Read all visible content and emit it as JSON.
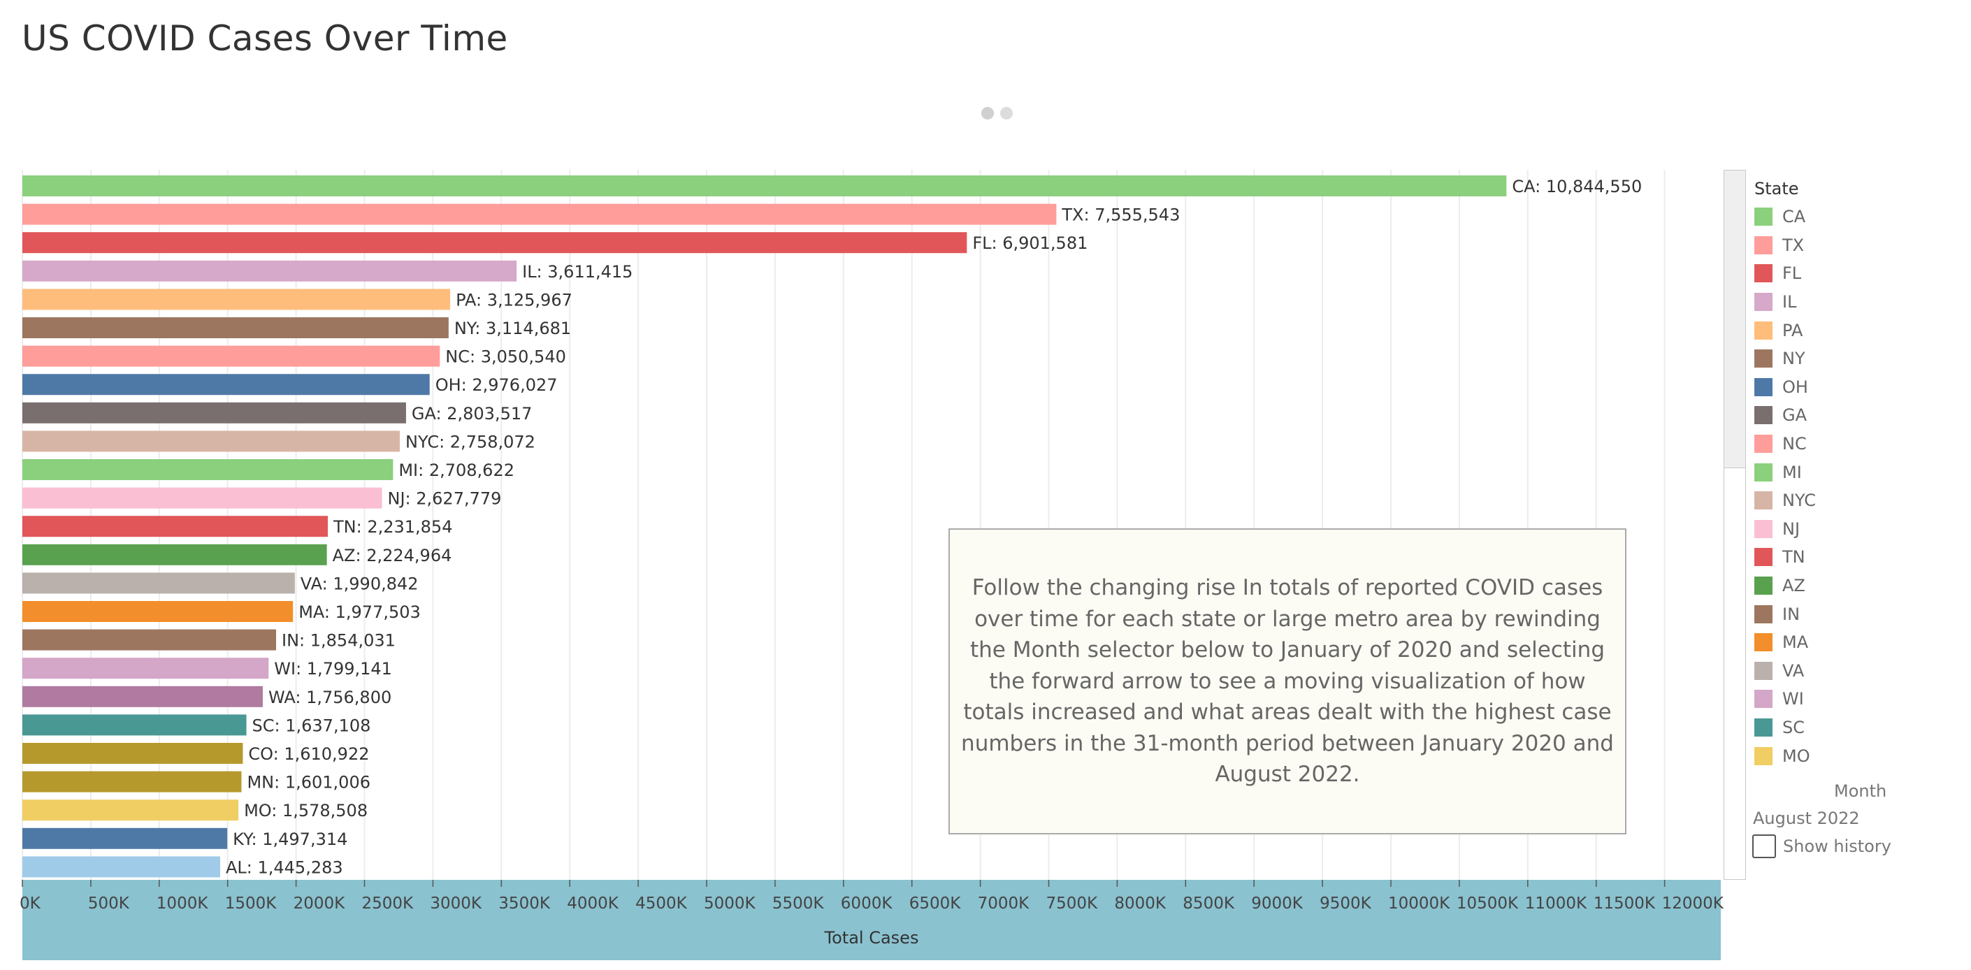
{
  "page": {
    "title": "US COVID Cases Over Time"
  },
  "chart_data": {
    "type": "bar",
    "orientation": "horizontal",
    "xlabel": "Total Cases",
    "xlim": [
      0,
      12500000
    ],
    "ticks": [
      {
        "value": 0,
        "label": "0K"
      },
      {
        "value": 500000,
        "label": "500K"
      },
      {
        "value": 1000000,
        "label": "1000K"
      },
      {
        "value": 1500000,
        "label": "1500K"
      },
      {
        "value": 2000000,
        "label": "2000K"
      },
      {
        "value": 2500000,
        "label": "2500K"
      },
      {
        "value": 3000000,
        "label": "3000K"
      },
      {
        "value": 3500000,
        "label": "3500K"
      },
      {
        "value": 4000000,
        "label": "4000K"
      },
      {
        "value": 4500000,
        "label": "4500K"
      },
      {
        "value": 5000000,
        "label": "5000K"
      },
      {
        "value": 5500000,
        "label": "5500K"
      },
      {
        "value": 6000000,
        "label": "6000K"
      },
      {
        "value": 6500000,
        "label": "6500K"
      },
      {
        "value": 7000000,
        "label": "7000K"
      },
      {
        "value": 7500000,
        "label": "7500K"
      },
      {
        "value": 8000000,
        "label": "8000K"
      },
      {
        "value": 8500000,
        "label": "8500K"
      },
      {
        "value": 9000000,
        "label": "9000K"
      },
      {
        "value": 9500000,
        "label": "9500K"
      },
      {
        "value": 10000000,
        "label": "10000K"
      },
      {
        "value": 10500000,
        "label": "10500K"
      },
      {
        "value": 11000000,
        "label": "11000K"
      },
      {
        "value": 11500000,
        "label": "11500K"
      },
      {
        "value": 12000000,
        "label": "12000K"
      }
    ],
    "bars": [
      {
        "state": "CA",
        "value": 10844550,
        "label": "CA: 10,844,550",
        "color": "#8bd07d"
      },
      {
        "state": "TX",
        "value": 7555543,
        "label": "TX: 7,555,543",
        "color": "#fe9d9a"
      },
      {
        "state": "FL",
        "value": 6901581,
        "label": "FL: 6,901,581",
        "color": "#e15759"
      },
      {
        "state": "IL",
        "value": 3611415,
        "label": "IL: 3,611,415",
        "color": "#d6a8ca"
      },
      {
        "state": "PA",
        "value": 3125967,
        "label": "PA: 3,125,967",
        "color": "#ffbd7c"
      },
      {
        "state": "NY",
        "value": 3114681,
        "label": "NY: 3,114,681",
        "color": "#9d7660"
      },
      {
        "state": "NC",
        "value": 3050540,
        "label": "NC: 3,050,540",
        "color": "#fe9d9a"
      },
      {
        "state": "OH",
        "value": 2976027,
        "label": "OH: 2,976,027",
        "color": "#4e79a7"
      },
      {
        "state": "GA",
        "value": 2803517,
        "label": "GA: 2,803,517",
        "color": "#796f6e"
      },
      {
        "state": "NYC",
        "value": 2758072,
        "label": "NYC: 2,758,072",
        "color": "#d7b5a6"
      },
      {
        "state": "MI",
        "value": 2708622,
        "label": "MI: 2,708,622",
        "color": "#8bd07d"
      },
      {
        "state": "NJ",
        "value": 2627779,
        "label": "NJ: 2,627,779",
        "color": "#fabfd2"
      },
      {
        "state": "TN",
        "value": 2231854,
        "label": "TN: 2,231,854",
        "color": "#e15759"
      },
      {
        "state": "AZ",
        "value": 2224964,
        "label": "AZ: 2,224,964",
        "color": "#59a14f"
      },
      {
        "state": "VA",
        "value": 1990842,
        "label": "VA: 1,990,842",
        "color": "#bab0ac"
      },
      {
        "state": "MA",
        "value": 1977503,
        "label": "MA: 1,977,503",
        "color": "#f28e2b"
      },
      {
        "state": "IN",
        "value": 1854031,
        "label": "IN: 1,854,031",
        "color": "#9d7660"
      },
      {
        "state": "WI",
        "value": 1799141,
        "label": "WI: 1,799,141",
        "color": "#d4a6c8"
      },
      {
        "state": "WA",
        "value": 1756800,
        "label": "WA: 1,756,800",
        "color": "#b07aa1"
      },
      {
        "state": "SC",
        "value": 1637108,
        "label": "SC: 1,637,108",
        "color": "#499894"
      },
      {
        "state": "CO",
        "value": 1610922,
        "label": "CO: 1,610,922",
        "color": "#b6992d"
      },
      {
        "state": "MN",
        "value": 1601006,
        "label": "MN: 1,601,006",
        "color": "#b6992d"
      },
      {
        "state": "MO",
        "value": 1578508,
        "label": "MO: 1,578,508",
        "color": "#f1ce63"
      },
      {
        "state": "KY",
        "value": 1497314,
        "label": "KY: 1,497,314",
        "color": "#4e79a7"
      },
      {
        "state": "AL",
        "value": 1445283,
        "label": "AL: 1,445,283",
        "color": "#a0cbe8"
      }
    ]
  },
  "legend": {
    "title": "State",
    "items": [
      {
        "label": "CA",
        "color": "#8bd07d"
      },
      {
        "label": "TX",
        "color": "#fe9d9a"
      },
      {
        "label": "FL",
        "color": "#e15759"
      },
      {
        "label": "IL",
        "color": "#d6a8ca"
      },
      {
        "label": "PA",
        "color": "#ffbd7c"
      },
      {
        "label": "NY",
        "color": "#9d7660"
      },
      {
        "label": "OH",
        "color": "#4e79a7"
      },
      {
        "label": "GA",
        "color": "#796f6e"
      },
      {
        "label": "NC",
        "color": "#fe9d9a"
      },
      {
        "label": "MI",
        "color": "#8bd07d"
      },
      {
        "label": "NYC",
        "color": "#d7b5a6"
      },
      {
        "label": "NJ",
        "color": "#fabfd2"
      },
      {
        "label": "TN",
        "color": "#e15759"
      },
      {
        "label": "AZ",
        "color": "#59a14f"
      },
      {
        "label": "IN",
        "color": "#9d7660"
      },
      {
        "label": "MA",
        "color": "#f28e2b"
      },
      {
        "label": "VA",
        "color": "#bab0ac"
      },
      {
        "label": "WI",
        "color": "#d4a6c8"
      },
      {
        "label": "SC",
        "color": "#499894"
      },
      {
        "label": "MO",
        "color": "#f1ce63"
      }
    ]
  },
  "pages_control": {
    "month_label": "Month",
    "month_value": "August 2022",
    "show_history_label": "Show history",
    "show_history_checked": false
  },
  "annotation": {
    "text": "Follow the changing rise In totals of reported COVID cases over time for each state or large metro area by rewinding the Month selector below to January of 2020 and selecting the forward arrow to see a moving visualization of how totals increased and what areas dealt with the highest case numbers in the 31-month period between January 2020 and August 2022."
  },
  "colors": {
    "axis_band": "#8ac2d0",
    "gridline": "#ececec"
  }
}
